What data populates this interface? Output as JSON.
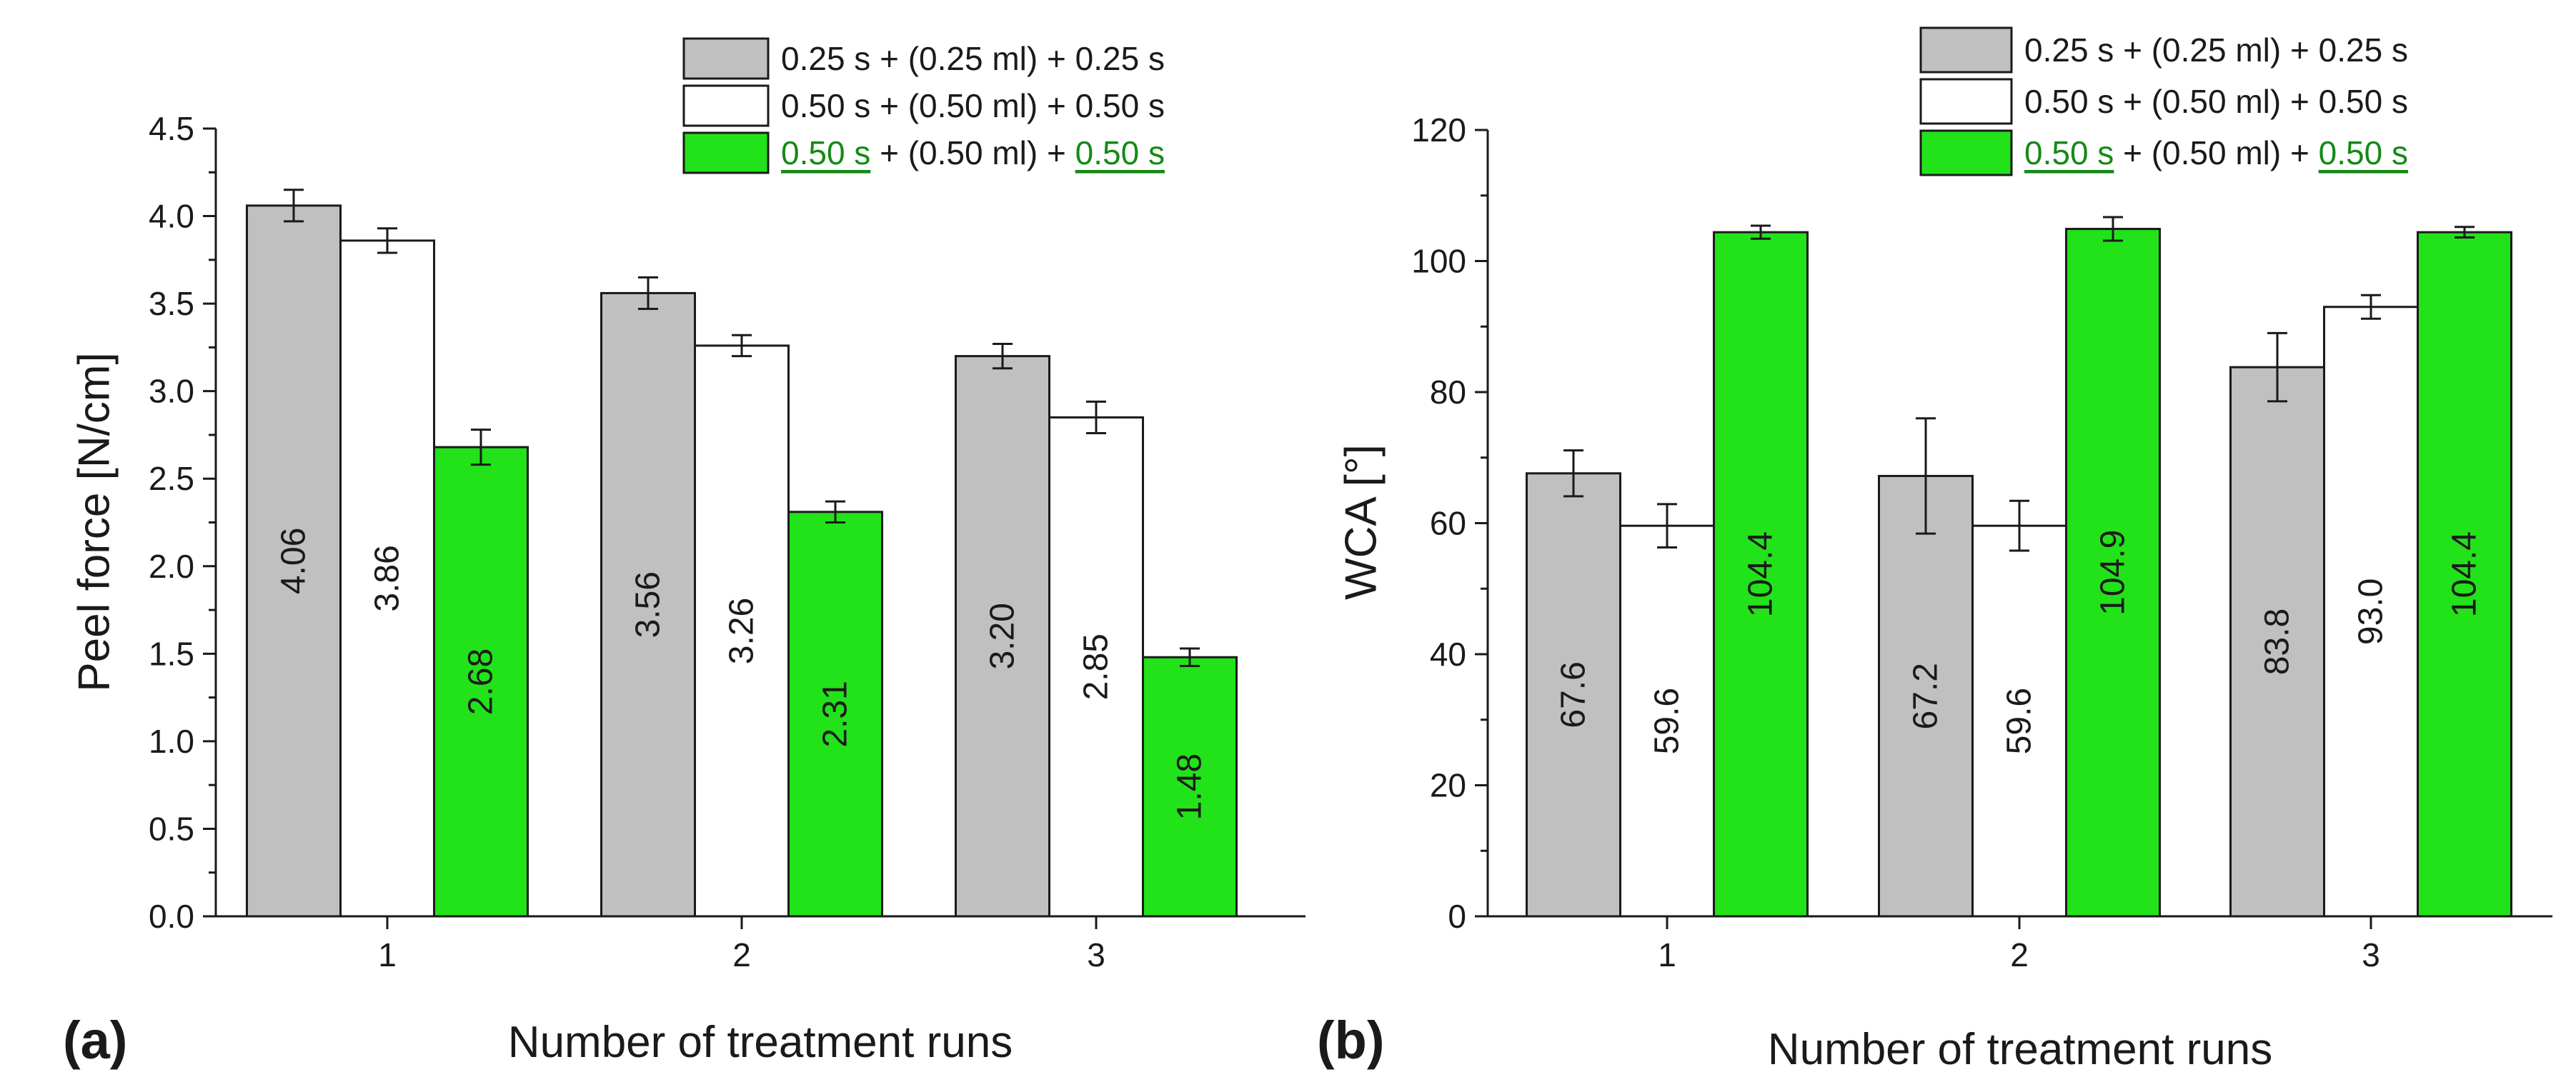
{
  "colors": {
    "series": [
      "#c0c0c0",
      "#ffffff",
      "#22e21a"
    ],
    "underline_text": "#158a15",
    "axis": "#1a1a1a"
  },
  "chart_data": [
    {
      "type": "bar",
      "panel_tag": "(a)",
      "xlabel": "Number of treatment runs",
      "ylabel": "Peel force [N/cm]",
      "categories": [
        "1",
        "2",
        "3"
      ],
      "ylim": [
        0,
        4.5
      ],
      "yticks": [
        "0.0",
        "0.5",
        "1.0",
        "1.5",
        "2.0",
        "2.5",
        "3.0",
        "3.5",
        "4.0",
        "4.5"
      ],
      "legend_position": "top-right",
      "series": [
        {
          "name": "0.25 s + (0.25 ml) + 0.25 s",
          "legend_parts": [
            {
              "text": "0.25 s + (0.25 ml) + 0.25 s",
              "style": "plain"
            }
          ],
          "values": [
            4.06,
            3.56,
            3.2
          ],
          "labels": [
            "4.06",
            "3.56",
            "3.20"
          ],
          "errors": [
            0.09,
            0.09,
            0.07
          ]
        },
        {
          "name": "0.50 s + (0.50 ml) + 0.50 s",
          "legend_parts": [
            {
              "text": "0.50 s + (0.50 ml) + 0.50 s",
              "style": "plain"
            }
          ],
          "values": [
            3.86,
            3.26,
            2.85
          ],
          "labels": [
            "3.86",
            "3.26",
            "2.85"
          ],
          "errors": [
            0.07,
            0.06,
            0.09
          ]
        },
        {
          "name": "0.50 s + (0.50 ml) + 0.50 s",
          "legend_parts": [
            {
              "text": "0.50 s",
              "style": "underline"
            },
            {
              "text": " + (0.50 ml) + ",
              "style": "plain"
            },
            {
              "text": "0.50 s",
              "style": "underline"
            }
          ],
          "values": [
            2.68,
            2.31,
            1.48
          ],
          "labels": [
            "2.68",
            "2.31",
            "1.48"
          ],
          "errors": [
            0.1,
            0.06,
            0.05
          ]
        }
      ]
    },
    {
      "type": "bar",
      "panel_tag": "(b)",
      "xlabel": "Number of treatment runs",
      "ylabel": "WCA [°]",
      "categories": [
        "1",
        "2",
        "3"
      ],
      "ylim": [
        0,
        120
      ],
      "yticks": [
        "0",
        "20",
        "40",
        "60",
        "80",
        "100",
        "120"
      ],
      "legend_position": "top-right",
      "series": [
        {
          "name": "0.25 s + (0.25 ml) + 0.25 s",
          "legend_parts": [
            {
              "text": "0.25 s + (0.25 ml) + 0.25 s",
              "style": "plain"
            }
          ],
          "values": [
            67.6,
            67.2,
            83.8
          ],
          "labels": [
            "67.6",
            "67.2",
            "83.8"
          ],
          "errors": [
            3.5,
            8.8,
            5.2
          ]
        },
        {
          "name": "0.50 s + (0.50 ml) + 0.50 s",
          "legend_parts": [
            {
              "text": "0.50 s + (0.50 ml) + 0.50 s",
              "style": "plain"
            }
          ],
          "values": [
            59.6,
            59.6,
            93.0
          ],
          "labels": [
            "59.6",
            "59.6",
            "93.0"
          ],
          "errors": [
            3.3,
            3.8,
            1.8
          ]
        },
        {
          "name": "0.50 s + (0.50 ml) + 0.50 s",
          "legend_parts": [
            {
              "text": "0.50 s",
              "style": "underline"
            },
            {
              "text": " + (0.50 ml) + ",
              "style": "plain"
            },
            {
              "text": "0.50 s",
              "style": "underline"
            }
          ],
          "values": [
            104.4,
            104.9,
            104.4
          ],
          "labels": [
            "104.4",
            "104.9",
            "104.4"
          ],
          "errors": [
            1.0,
            1.8,
            0.8
          ]
        }
      ]
    }
  ]
}
